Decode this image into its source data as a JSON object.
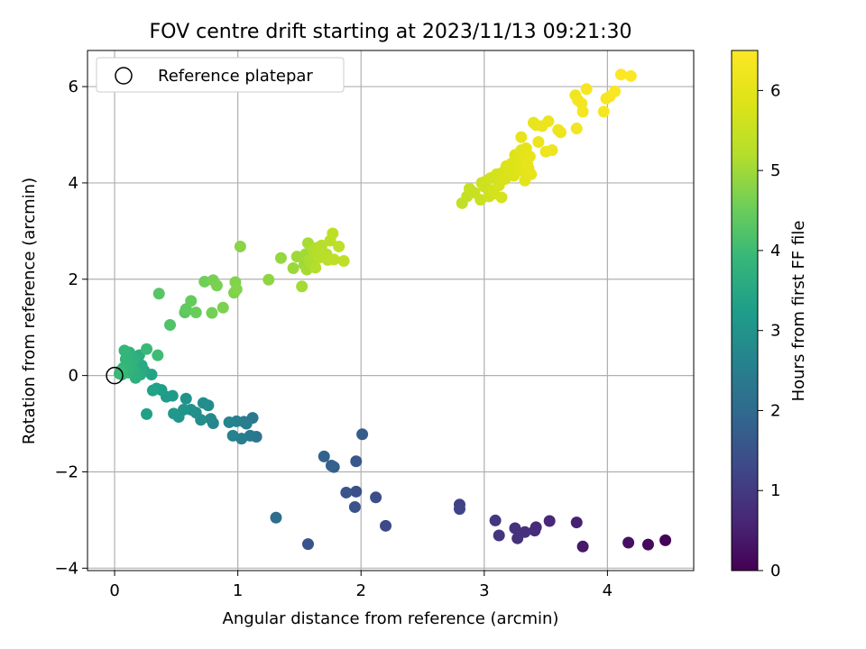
{
  "chart_data": {
    "type": "scatter",
    "title": "FOV centre drift starting at 2023/11/13 09:21:30",
    "xlabel": "Angular distance from reference (arcmin)",
    "ylabel": "Rotation from reference (arcmin)",
    "xlim": [
      -0.22,
      4.7
    ],
    "ylim": [
      -4.05,
      6.75
    ],
    "xticks": [
      0,
      1,
      2,
      3,
      4
    ],
    "xtick_labels": [
      "0",
      "1",
      "2",
      "3",
      "4"
    ],
    "yticks": [
      -4,
      -2,
      0,
      2,
      4,
      6
    ],
    "ytick_labels": [
      "−4",
      "−2",
      "0",
      "2",
      "4",
      "6"
    ],
    "grid": true,
    "legend": {
      "position": "top-left",
      "entries": [
        "Reference platepar"
      ]
    },
    "reference_point": {
      "x": 0,
      "y": 0
    },
    "colorbar": {
      "label": "Hours from first FF file",
      "range": [
        0,
        6.5
      ],
      "ticks": [
        0,
        1,
        2,
        3,
        4,
        5,
        6
      ],
      "tick_labels": [
        "0",
        "1",
        "2",
        "3",
        "4",
        "5",
        "6"
      ],
      "colormap": "viridis"
    },
    "points": [
      [
        4.47,
        -3.42,
        0.05
      ],
      [
        4.33,
        -3.51,
        0.15
      ],
      [
        4.17,
        -3.47,
        0.25
      ],
      [
        3.8,
        -3.55,
        0.4
      ],
      [
        3.75,
        -3.05,
        0.55
      ],
      [
        3.53,
        -3.02,
        0.65
      ],
      [
        3.42,
        -3.15,
        0.72
      ],
      [
        3.41,
        -3.22,
        0.75
      ],
      [
        3.33,
        -3.25,
        0.8
      ],
      [
        3.27,
        -3.38,
        0.82
      ],
      [
        3.25,
        -3.17,
        0.85
      ],
      [
        3.12,
        -3.32,
        0.9
      ],
      [
        3.09,
        -3.01,
        0.95
      ],
      [
        2.8,
        -2.68,
        1.15
      ],
      [
        2.8,
        -2.77,
        1.2
      ],
      [
        2.2,
        -3.12,
        1.3
      ],
      [
        2.12,
        -2.53,
        1.4
      ],
      [
        1.96,
        -2.41,
        1.45
      ],
      [
        1.95,
        -2.73,
        1.5
      ],
      [
        1.88,
        -2.43,
        1.55
      ],
      [
        1.96,
        -1.78,
        1.6
      ],
      [
        2.01,
        -1.22,
        1.7
      ],
      [
        1.78,
        -1.9,
        1.75
      ],
      [
        1.76,
        -1.87,
        1.8
      ],
      [
        1.7,
        -1.68,
        1.85
      ],
      [
        1.57,
        -3.5,
        1.5
      ],
      [
        1.31,
        -2.95,
        2.1
      ],
      [
        1.15,
        -1.27,
        2.3
      ],
      [
        1.12,
        -0.88,
        2.35
      ],
      [
        1.1,
        -1.25,
        2.4
      ],
      [
        1.07,
        -1.0,
        2.45
      ],
      [
        1.05,
        -0.96,
        2.5
      ],
      [
        1.03,
        -1.31,
        2.5
      ],
      [
        0.99,
        -0.95,
        2.55
      ],
      [
        0.96,
        -1.25,
        2.6
      ],
      [
        0.93,
        -0.97,
        2.65
      ],
      [
        0.8,
        -0.99,
        2.7
      ],
      [
        0.78,
        -0.9,
        2.75
      ],
      [
        0.76,
        -0.62,
        2.8
      ],
      [
        0.72,
        -0.57,
        2.85
      ],
      [
        0.7,
        -0.92,
        2.85
      ],
      [
        0.66,
        -0.77,
        2.9
      ],
      [
        0.62,
        -0.71,
        2.95
      ],
      [
        0.58,
        -0.48,
        3.0
      ],
      [
        0.56,
        -0.71,
        3.05
      ],
      [
        0.52,
        -0.86,
        3.05
      ],
      [
        0.48,
        -0.79,
        3.1
      ],
      [
        0.47,
        -0.42,
        3.15
      ],
      [
        0.42,
        -0.44,
        3.2
      ],
      [
        0.38,
        -0.3,
        3.25
      ],
      [
        0.34,
        -0.27,
        3.3
      ],
      [
        0.31,
        -0.31,
        3.35
      ],
      [
        0.26,
        -0.8,
        3.3
      ],
      [
        0.3,
        0.02,
        3.4
      ],
      [
        0.24,
        0.1,
        3.5
      ],
      [
        0.22,
        0.21,
        3.55
      ],
      [
        0.21,
        0.02,
        3.6
      ],
      [
        0.2,
        0.42,
        3.62
      ],
      [
        0.18,
        0.05,
        3.65
      ],
      [
        0.17,
        -0.05,
        3.68
      ],
      [
        0.16,
        0.35,
        3.7
      ],
      [
        0.15,
        0.12,
        3.72
      ],
      [
        0.14,
        0.28,
        3.74
      ],
      [
        0.13,
        0.18,
        3.76
      ],
      [
        0.12,
        0.48,
        3.78
      ],
      [
        0.11,
        0.06,
        3.8
      ],
      [
        0.1,
        0.22,
        3.82
      ],
      [
        0.09,
        0.34,
        3.84
      ],
      [
        0.08,
        0.52,
        3.86
      ],
      [
        0.07,
        0.16,
        3.88
      ],
      [
        0.06,
        0.02,
        3.9
      ],
      [
        0.05,
        0.1,
        3.92
      ],
      [
        0.04,
        0.04,
        3.94
      ],
      [
        0.26,
        0.55,
        3.96
      ],
      [
        0.35,
        0.42,
        4.0
      ],
      [
        0.45,
        1.05,
        4.2
      ],
      [
        0.36,
        1.7,
        4.3
      ],
      [
        0.57,
        1.31,
        4.35
      ],
      [
        0.58,
        1.38,
        4.4
      ],
      [
        0.62,
        1.55,
        4.45
      ],
      [
        0.66,
        1.31,
        4.5
      ],
      [
        0.73,
        1.95,
        4.55
      ],
      [
        0.79,
        1.3,
        4.6
      ],
      [
        0.8,
        1.98,
        4.62
      ],
      [
        0.83,
        1.87,
        4.65
      ],
      [
        0.88,
        1.41,
        4.68
      ],
      [
        0.97,
        1.72,
        4.7
      ],
      [
        0.98,
        1.94,
        4.72
      ],
      [
        0.99,
        1.79,
        4.74
      ],
      [
        1.02,
        2.68,
        4.8
      ],
      [
        1.25,
        1.99,
        4.85
      ],
      [
        1.35,
        2.44,
        4.9
      ],
      [
        1.45,
        2.23,
        4.95
      ],
      [
        1.48,
        2.47,
        5.0
      ],
      [
        1.52,
        1.85,
        5.05
      ],
      [
        1.54,
        2.3,
        5.0
      ],
      [
        1.55,
        2.52,
        5.02
      ],
      [
        1.56,
        2.2,
        5.05
      ],
      [
        1.57,
        2.75,
        5.08
      ],
      [
        1.58,
        2.4,
        5.1
      ],
      [
        1.6,
        2.32,
        5.12
      ],
      [
        1.61,
        2.61,
        5.14
      ],
      [
        1.62,
        2.5,
        5.16
      ],
      [
        1.63,
        2.24,
        5.18
      ],
      [
        1.64,
        2.65,
        5.2
      ],
      [
        1.66,
        2.45,
        5.22
      ],
      [
        1.68,
        2.7,
        5.24
      ],
      [
        1.72,
        2.52,
        5.26
      ],
      [
        1.73,
        2.4,
        5.28
      ],
      [
        1.75,
        2.8,
        5.3
      ],
      [
        1.77,
        2.95,
        5.32
      ],
      [
        1.78,
        2.41,
        5.34
      ],
      [
        1.82,
        2.68,
        5.35
      ],
      [
        1.86,
        2.38,
        5.36
      ],
      [
        2.82,
        3.58,
        5.4
      ],
      [
        2.86,
        3.72,
        5.45
      ],
      [
        2.88,
        3.88,
        5.5
      ],
      [
        2.92,
        3.8,
        5.52
      ],
      [
        2.97,
        3.65,
        5.54
      ],
      [
        2.98,
        4.0,
        5.56
      ],
      [
        3.0,
        3.92,
        5.58
      ],
      [
        3.02,
        4.05,
        5.6
      ],
      [
        3.04,
        3.72,
        5.62
      ],
      [
        3.05,
        4.1,
        5.64
      ],
      [
        3.07,
        3.85,
        5.66
      ],
      [
        3.08,
        3.78,
        5.68
      ],
      [
        3.1,
        4.18,
        5.7
      ],
      [
        3.12,
        3.95,
        5.72
      ],
      [
        3.14,
        3.7,
        5.74
      ],
      [
        3.15,
        4.22,
        5.76
      ],
      [
        3.17,
        4.08,
        5.78
      ],
      [
        3.18,
        4.35,
        5.8
      ],
      [
        3.2,
        4.28,
        5.82
      ],
      [
        3.22,
        4.4,
        5.84
      ],
      [
        3.24,
        4.15,
        5.86
      ],
      [
        3.25,
        4.58,
        5.88
      ],
      [
        3.27,
        4.32,
        5.9
      ],
      [
        3.28,
        4.5,
        5.92
      ],
      [
        3.3,
        4.68,
        5.94
      ],
      [
        3.31,
        4.25,
        5.96
      ],
      [
        3.32,
        4.45,
        5.98
      ],
      [
        3.33,
        4.05,
        6.0
      ],
      [
        3.34,
        4.72,
        6.02
      ],
      [
        3.35,
        4.38,
        6.04
      ],
      [
        3.3,
        4.95,
        6.06
      ],
      [
        3.36,
        4.3,
        6.05
      ],
      [
        3.37,
        4.55,
        6.06
      ],
      [
        3.38,
        4.18,
        6.07
      ],
      [
        3.4,
        5.25,
        6.08
      ],
      [
        3.42,
        5.2,
        6.1
      ],
      [
        3.44,
        4.85,
        6.12
      ],
      [
        3.47,
        5.18,
        6.14
      ],
      [
        3.52,
        5.28,
        6.16
      ],
      [
        3.5,
        4.65,
        6.17
      ],
      [
        3.55,
        4.68,
        6.18
      ],
      [
        3.6,
        5.1,
        6.2
      ],
      [
        3.62,
        5.05,
        6.22
      ],
      [
        3.74,
        5.82,
        6.25
      ],
      [
        3.75,
        5.13,
        6.27
      ],
      [
        3.76,
        5.72,
        6.28
      ],
      [
        3.79,
        5.65,
        6.3
      ],
      [
        3.8,
        5.48,
        6.32
      ],
      [
        3.83,
        5.95,
        6.34
      ],
      [
        3.97,
        5.48,
        6.36
      ],
      [
        3.99,
        5.75,
        6.38
      ],
      [
        4.02,
        5.8,
        6.4
      ],
      [
        4.06,
        5.9,
        6.42
      ],
      [
        4.11,
        6.25,
        6.46
      ],
      [
        4.19,
        6.22,
        6.48
      ]
    ]
  }
}
